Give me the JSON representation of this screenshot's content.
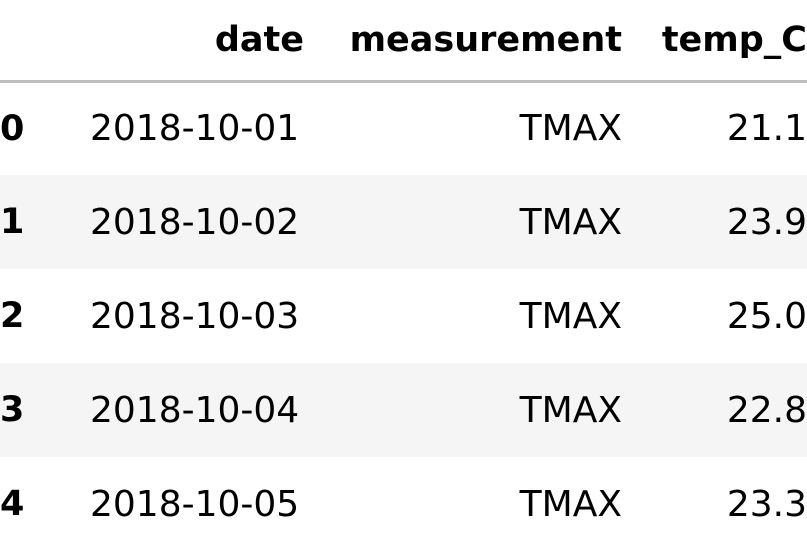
{
  "table": {
    "columns": {
      "date": "date",
      "measurement": "measurement",
      "temp_C": "temp_C"
    },
    "rows": [
      {
        "index": "0",
        "date": "2018-10-01",
        "measurement": "TMAX",
        "temp_C": "21.1"
      },
      {
        "index": "1",
        "date": "2018-10-02",
        "measurement": "TMAX",
        "temp_C": "23.9"
      },
      {
        "index": "2",
        "date": "2018-10-03",
        "measurement": "TMAX",
        "temp_C": "25.0"
      },
      {
        "index": "3",
        "date": "2018-10-04",
        "measurement": "TMAX",
        "temp_C": "22.8"
      },
      {
        "index": "4",
        "date": "2018-10-05",
        "measurement": "TMAX",
        "temp_C": "23.3"
      }
    ]
  }
}
